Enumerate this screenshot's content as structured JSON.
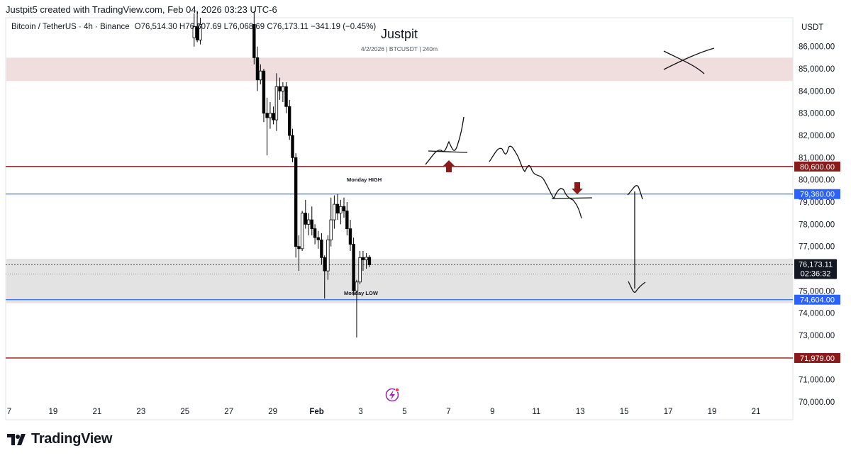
{
  "header": {
    "credit": "Justpit5 created with TradingView.com, Feb 04, 2026 03:23 UTC-6"
  },
  "legend": {
    "symbol": "Bitcoin / TetherUS · 4h · Binance",
    "ohlc": "O76,514.30 H76,607.69 L76,068.69 C76,173.11 −341.19 (−0.45%)"
  },
  "watermark": {
    "author": "Justpit",
    "info": "4/2/2026 | BTCUSDT | 240m"
  },
  "axis": {
    "currency": "USDT"
  },
  "annotations": {
    "monday_high": "Monday HIGH",
    "monday_low": "Monday LOW"
  },
  "current_price": {
    "price": "76,173.11",
    "countdown": "02:36:32"
  },
  "colors": {
    "bull": "#ffffff",
    "bear": "#000000",
    "resistance": "#8b1a1a",
    "monday_level": "#2962ff",
    "supply_zone": "#f0dede",
    "demand_zone": "#e3e3e3",
    "arrow": "#8b1a1a"
  },
  "footer": {
    "brand": "TradingView"
  },
  "chart_data": {
    "type": "candlestick",
    "y_ticks": [
      86000,
      85000,
      84000,
      83000,
      82000,
      81000,
      80000,
      79000,
      78000,
      77000,
      76000,
      75000,
      74000,
      73000,
      72000,
      71000,
      70000
    ],
    "y_tick_labels": [
      "86,000.00",
      "85,000.00",
      "84,000.00",
      "83,000.00",
      "82,000.00",
      "81,000.00",
      "80,000.00",
      "79,000.00",
      "78,000.00",
      "77,000.00",
      "76,000.00",
      "75,000.00",
      "74,000.00",
      "73,000.00",
      "72,000.00",
      "71,000.00",
      "70,000.00"
    ],
    "y_range": [
      69200,
      87300
    ],
    "x_range": [
      17,
      52
    ],
    "x_ticks": [
      {
        "t": 17,
        "label": "7"
      },
      {
        "t": 19,
        "label": "19"
      },
      {
        "t": 21,
        "label": "21"
      },
      {
        "t": 23,
        "label": "23"
      },
      {
        "t": 25,
        "label": "25"
      },
      {
        "t": 27,
        "label": "27"
      },
      {
        "t": 29,
        "label": "29"
      },
      {
        "t": 31,
        "label": "Feb"
      },
      {
        "t": 33,
        "label": "3"
      },
      {
        "t": 35,
        "label": "5"
      },
      {
        "t": 37,
        "label": "7"
      },
      {
        "t": 39,
        "label": "9"
      },
      {
        "t": 41,
        "label": "11"
      },
      {
        "t": 43,
        "label": "13"
      },
      {
        "t": 45,
        "label": "15"
      },
      {
        "t": 47,
        "label": "17"
      },
      {
        "t": 49,
        "label": "19"
      },
      {
        "t": 51,
        "label": "21"
      }
    ],
    "price_lines": [
      {
        "price": 80600,
        "label": "80,600.00",
        "style": "resistance"
      },
      {
        "price": 79360,
        "label": "79,360.00",
        "style": "monday_level"
      },
      {
        "price": 74604,
        "label": "74,604.00",
        "style": "monday_level"
      },
      {
        "price": 71979,
        "label": "71,979.00",
        "style": "resistance"
      }
    ],
    "zones": [
      {
        "from": 84450,
        "to": 85500,
        "style": "supply_zone"
      },
      {
        "from": 74450,
        "to": 76450,
        "style": "demand_zone"
      }
    ],
    "current_price_value": 76173.11,
    "candles": [
      {
        "t": 25.42,
        "o": 86400,
        "h": 87500,
        "l": 86000,
        "c": 86900
      },
      {
        "t": 25.56,
        "o": 86900,
        "h": 87600,
        "l": 86200,
        "c": 86300
      },
      {
        "t": 25.7,
        "o": 86300,
        "h": 87300,
        "l": 86100,
        "c": 87000
      },
      {
        "t": 28.15,
        "o": 87000,
        "h": 87600,
        "l": 85200,
        "c": 85500
      },
      {
        "t": 28.3,
        "o": 85500,
        "h": 86000,
        "l": 84000,
        "c": 84500
      },
      {
        "t": 28.44,
        "o": 84500,
        "h": 85200,
        "l": 84300,
        "c": 84900
      },
      {
        "t": 28.59,
        "o": 84900,
        "h": 85000,
        "l": 82600,
        "c": 83000
      },
      {
        "t": 28.74,
        "o": 83000,
        "h": 83700,
        "l": 81100,
        "c": 82800
      },
      {
        "t": 28.88,
        "o": 82800,
        "h": 83500,
        "l": 82300,
        "c": 83000
      },
      {
        "t": 29.03,
        "o": 83000,
        "h": 83300,
        "l": 82500,
        "c": 82700
      },
      {
        "t": 29.17,
        "o": 82700,
        "h": 84800,
        "l": 82200,
        "c": 84200
      },
      {
        "t": 29.32,
        "o": 84200,
        "h": 84600,
        "l": 83600,
        "c": 84000
      },
      {
        "t": 29.46,
        "o": 84000,
        "h": 84400,
        "l": 83500,
        "c": 84200
      },
      {
        "t": 29.61,
        "o": 84200,
        "h": 84400,
        "l": 83000,
        "c": 83300
      },
      {
        "t": 29.76,
        "o": 83300,
        "h": 83600,
        "l": 81800,
        "c": 82000
      },
      {
        "t": 29.9,
        "o": 82000,
        "h": 82300,
        "l": 80800,
        "c": 81000
      },
      {
        "t": 30.05,
        "o": 81000,
        "h": 81200,
        "l": 76500,
        "c": 77000
      },
      {
        "t": 30.19,
        "o": 77000,
        "h": 77500,
        "l": 75900,
        "c": 76900
      },
      {
        "t": 30.34,
        "o": 76900,
        "h": 78600,
        "l": 76800,
        "c": 78500
      },
      {
        "t": 30.49,
        "o": 78500,
        "h": 79100,
        "l": 77800,
        "c": 78000
      },
      {
        "t": 30.63,
        "o": 78000,
        "h": 78500,
        "l": 77500,
        "c": 78200
      },
      {
        "t": 30.78,
        "o": 78200,
        "h": 78800,
        "l": 77500,
        "c": 77800
      },
      {
        "t": 30.92,
        "o": 77800,
        "h": 78000,
        "l": 77100,
        "c": 77400
      },
      {
        "t": 31.07,
        "o": 77400,
        "h": 77700,
        "l": 76900,
        "c": 77300
      },
      {
        "t": 31.22,
        "o": 77300,
        "h": 77600,
        "l": 76200,
        "c": 76500
      },
      {
        "t": 31.36,
        "o": 76500,
        "h": 76600,
        "l": 74650,
        "c": 75900
      },
      {
        "t": 31.51,
        "o": 75900,
        "h": 77500,
        "l": 75500,
        "c": 77300
      },
      {
        "t": 31.65,
        "o": 77300,
        "h": 79200,
        "l": 77000,
        "c": 78200
      },
      {
        "t": 31.8,
        "o": 78200,
        "h": 79300,
        "l": 77800,
        "c": 78900
      },
      {
        "t": 31.95,
        "o": 78900,
        "h": 79360,
        "l": 78200,
        "c": 78500
      },
      {
        "t": 32.09,
        "o": 78500,
        "h": 79100,
        "l": 78000,
        "c": 78800
      },
      {
        "t": 32.24,
        "o": 78800,
        "h": 79200,
        "l": 78300,
        "c": 78600
      },
      {
        "t": 32.38,
        "o": 78600,
        "h": 79000,
        "l": 77500,
        "c": 77800
      },
      {
        "t": 32.53,
        "o": 77800,
        "h": 78200,
        "l": 76800,
        "c": 77100
      },
      {
        "t": 32.68,
        "o": 77100,
        "h": 77400,
        "l": 74800,
        "c": 75000
      },
      {
        "t": 32.82,
        "o": 75000,
        "h": 75500,
        "l": 72900,
        "c": 75400
      },
      {
        "t": 32.97,
        "o": 75400,
        "h": 76800,
        "l": 75300,
        "c": 76500
      },
      {
        "t": 33.11,
        "o": 76500,
        "h": 76800,
        "l": 75900,
        "c": 76400
      },
      {
        "t": 33.26,
        "o": 76400,
        "h": 76700,
        "l": 76000,
        "c": 76514
      },
      {
        "t": 33.4,
        "o": 76514.3,
        "h": 76607.69,
        "l": 76068.69,
        "c": 76173.11
      }
    ]
  }
}
